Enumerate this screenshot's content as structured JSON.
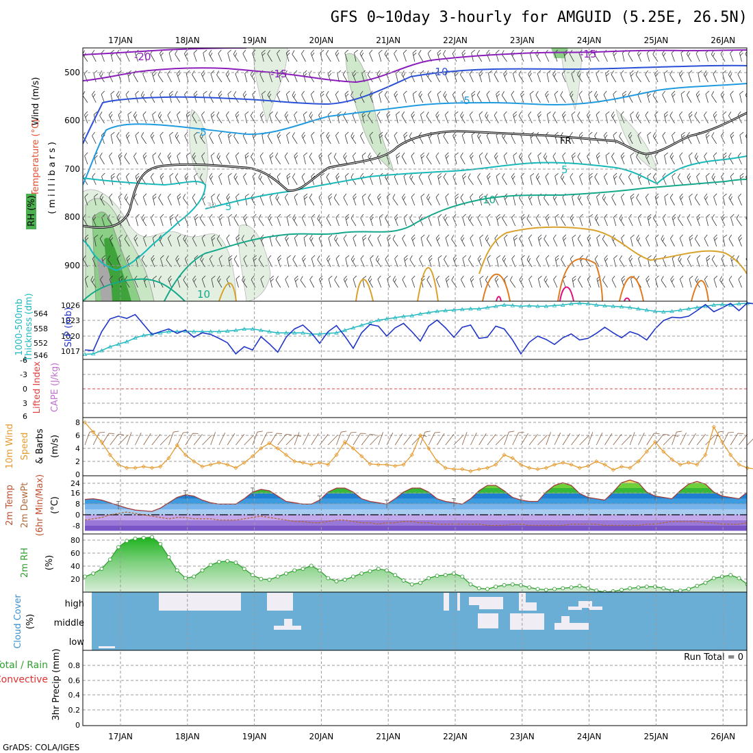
{
  "page": {
    "title": "GFS 0~10day 3-hourly for AMGUID (5.25E, 26.5N)",
    "footer": "GrADS: COLA/IGES",
    "dates": [
      "17JAN",
      "18JAN",
      "19JAN",
      "20JAN",
      "21JAN",
      "22JAN",
      "23JAN",
      "24JAN",
      "25JAN",
      "26JAN"
    ]
  },
  "panels": {
    "upper": {
      "axis_title": "(millibars)",
      "label_wind": "Wind (m/s)",
      "label_temp": "Temperature (°C)",
      "label_rh": "RH (%)",
      "pressure_ticks": [
        "500",
        "600",
        "700",
        "800",
        "900"
      ],
      "contour_labels": [
        "-20",
        "-15",
        "-15",
        "-10",
        "-5",
        "-5",
        "FR",
        "5",
        "5",
        "10",
        "10",
        "30"
      ]
    },
    "slp": {
      "label_slp": "SLP (mb)",
      "label_thick": "Thickness (dm)",
      "label_thick_top": "1000-500mb",
      "slp_ticks": [
        "1026",
        "1023",
        "1020",
        "1017"
      ],
      "thick_ticks": [
        "564",
        "558",
        "552",
        "546"
      ]
    },
    "li": {
      "label_li": "Lifted Index",
      "label_cape": "CAPE (J/kg)",
      "ticks": [
        "-6",
        "-3",
        "0",
        "3",
        "6"
      ]
    },
    "wind10": {
      "label_a": "10m Wind",
      "label_b": "Speed",
      "label_c": "& Barbs",
      "unit": "(m/s)",
      "ticks": [
        "8",
        "6",
        "4",
        "2",
        "0"
      ]
    },
    "temp": {
      "label_a": "2m Temp",
      "label_b": "2m DewPt",
      "label_c": "(6hr Min/Max)",
      "unit": "(°C)",
      "ticks": [
        "24",
        "16",
        "8",
        "0",
        "-8"
      ]
    },
    "rh2m": {
      "label": "2m RH",
      "unit": "(%)",
      "ticks": [
        "80",
        "60",
        "40",
        "20"
      ]
    },
    "cloud": {
      "label": "Cloud Cover",
      "unit": "(%)",
      "ticks": [
        "high",
        "middle",
        "low"
      ]
    },
    "precip": {
      "label_total": "Total / Rain",
      "label_conv": "Convective",
      "label_axis": "3hr Precip (mm)",
      "run_total": "Run Total = 0",
      "ticks": [
        "0.8",
        "0.6",
        "0.4",
        "0.2",
        "0"
      ]
    }
  },
  "colors": {
    "slp": "#1f35c8",
    "thickness": "#20b8c0",
    "wind": "#e69a2e",
    "temp_fill": "#3d9be0",
    "rh": "#2fa02f",
    "cloud_bg": "#6aaed6",
    "cloud_fill": "#f0eef4"
  },
  "chart_data": [
    {
      "type": "line",
      "title": "SLP (mb)",
      "x_unit": "3-hour step from 16JAN 12Z",
      "ylim": [
        1015.5,
        1026
      ],
      "series": [
        {
          "name": "SLP (mb)",
          "values": [
            1017.2,
            1017.1,
            1020.5,
            1022.8,
            1023.3,
            1022.9,
            1023.6,
            1021.8,
            1020.0,
            1020.5,
            1021.0,
            1020.2,
            1020.8,
            1019.5,
            1020.3,
            1020.0,
            1019.3,
            1018.5,
            1016.5,
            1017.8,
            1017.2,
            1019.6,
            1018.3,
            1016.8,
            1019.5,
            1021.0,
            1021.7,
            1020.3,
            1018.4,
            1020.5,
            1021.6,
            1019.7,
            1017.5,
            1020.3,
            1021.8,
            1021.5,
            1019.7,
            1021.2,
            1022.0,
            1020.5,
            1018.8,
            1021.5,
            1022.6,
            1021.2,
            1019.5,
            1021.3,
            1021.7,
            1019.3,
            1019.5,
            1021.5,
            1021.0,
            1019.0,
            1016.5,
            1018.6,
            1019.7,
            1019.1,
            1018.2,
            1019.4,
            1020.1,
            1019.0,
            1019.3,
            1020.2,
            1021.3,
            1020.3,
            1019.4,
            1020.5,
            1020.0,
            1019.0,
            1021.0,
            1022.5,
            1023.1,
            1023.0,
            1023.3,
            1024.3,
            1025.4,
            1024.1,
            1024.8,
            1025.6,
            1024.3,
            1025.7,
            1025.5
          ]
        }
      ]
    },
    {
      "type": "line",
      "title": "1000-500mb Thickness (dm)",
      "ylim": [
        544,
        567
      ],
      "series": [
        {
          "name": "Thickness (dm)",
          "values": [
            546,
            546.2,
            547.5,
            549,
            550,
            551,
            552.5,
            553.5,
            554,
            554.5,
            555,
            555,
            555.2,
            555,
            555,
            555,
            555,
            555.2,
            555.5,
            556,
            556,
            555.5,
            555,
            554.5,
            554.5,
            554.5,
            554.5,
            554,
            554,
            554.3,
            554.5,
            555.5,
            556.5,
            557.5,
            558.5,
            559.5,
            560,
            560.5,
            561,
            561.3,
            562,
            562.5,
            563,
            563.3,
            563.5,
            563.8,
            564,
            564,
            564.5,
            565,
            565.5,
            565.3,
            565,
            565.2,
            565,
            565,
            565.3,
            565.5,
            566,
            566.2,
            566,
            565.5,
            565.2,
            565,
            564.8,
            564.5,
            564,
            563.5,
            563,
            562.8,
            563,
            563.5,
            564,
            564.5,
            565,
            565.5,
            565.7,
            565.5,
            566,
            566.2,
            566
          ]
        }
      ]
    },
    {
      "type": "line",
      "title": "10m Wind Speed (m/s)",
      "ylim": [
        0,
        8
      ],
      "series": [
        {
          "name": "10m Wind Speed",
          "values": [
            8,
            6.5,
            5,
            3,
            1.5,
            1,
            1,
            1.2,
            1,
            1.2,
            2.5,
            4.5,
            3,
            2,
            1.2,
            1.5,
            1.8,
            1.5,
            1,
            1.8,
            2.8,
            4,
            4.8,
            4,
            3,
            2,
            1.8,
            1.5,
            1.8,
            1.5,
            3,
            5,
            4,
            2.8,
            1.6,
            1.5,
            1.5,
            1.3,
            1.5,
            3,
            6,
            4,
            2,
            1,
            0.8,
            0.8,
            0.5,
            0.8,
            1,
            1.5,
            3,
            2.5,
            1.5,
            1,
            0.8,
            1,
            1.5,
            1.8,
            1.5,
            1,
            1.3,
            2,
            1.5,
            0.7,
            1.2,
            1,
            2,
            3.5,
            5,
            3.5,
            2.3,
            1.5,
            1.8,
            1.5,
            3,
            7.3,
            5,
            3,
            1.5,
            1,
            0.8
          ]
        }
      ]
    },
    {
      "type": "area",
      "title": "2m Temp (°C)",
      "ylim": [
        -12,
        28
      ],
      "series": [
        {
          "name": "2m Temp",
          "values": [
            11.5,
            12,
            11,
            9,
            7,
            5,
            3.5,
            3,
            2.5,
            5,
            9,
            13,
            15,
            14,
            11,
            9,
            8,
            8,
            8,
            12,
            17,
            19,
            18,
            14,
            10,
            9,
            8,
            8,
            11,
            17,
            20,
            20,
            17,
            12,
            10,
            9,
            8,
            12,
            17,
            20,
            20,
            17,
            12,
            10,
            9,
            8,
            12,
            18,
            22,
            22,
            18,
            13,
            11,
            10,
            10,
            17,
            22,
            24,
            22,
            16,
            13,
            12,
            11,
            17,
            24,
            26,
            24,
            17,
            14,
            13,
            12,
            18,
            23,
            25,
            23,
            17,
            14,
            13,
            12,
            17,
            24,
            25,
            22,
            16,
            13,
            12,
            11,
            10,
            10
          ]
        },
        {
          "name": "2m DewPt",
          "values": [
            -4,
            -3,
            -2,
            0,
            1,
            2,
            1,
            0,
            -1,
            -2,
            -3,
            -2,
            -2,
            -3,
            -3,
            -3,
            -4,
            -4,
            -4,
            -3,
            -2,
            -1,
            -2,
            -3,
            -4,
            -5,
            -5,
            -6,
            -6,
            -5,
            -4,
            -4,
            -5,
            -6,
            -6,
            -7,
            -6,
            -6,
            -5,
            -5,
            -6,
            -6,
            -7,
            -7,
            -7,
            -7,
            -7,
            -7,
            -8,
            -8,
            -8,
            -7,
            -7,
            -8,
            -8,
            -8,
            -8,
            -8,
            -7,
            -7,
            -7,
            -7,
            -8,
            -8,
            -8,
            -8,
            -8,
            -7,
            -7,
            -6,
            -5,
            -5,
            -5,
            -5,
            -6,
            -6,
            -7,
            -7,
            -7,
            -6,
            -6,
            -7,
            -7,
            -7,
            -6,
            -6,
            -6,
            -6
          ]
        }
      ]
    },
    {
      "type": "area",
      "title": "2m RH (%)",
      "ylim": [
        10,
        85
      ],
      "series": [
        {
          "name": "2m RH",
          "values": [
            30,
            34,
            40,
            52,
            68,
            76,
            79,
            80,
            81,
            72,
            55,
            38,
            28,
            30,
            38,
            45,
            49,
            50,
            48,
            40,
            32,
            27,
            26,
            30,
            34,
            38,
            40,
            44,
            38,
            28,
            24,
            26,
            30,
            34,
            37,
            40,
            38,
            32,
            25,
            20,
            22,
            28,
            31,
            32,
            34,
            30,
            20,
            15,
            14,
            17,
            19,
            20,
            19,
            16,
            14,
            13,
            14,
            15,
            16,
            18,
            15,
            12,
            10,
            11,
            13,
            15,
            16,
            17,
            17,
            15,
            12,
            12,
            14,
            18,
            22,
            28,
            30,
            32,
            28,
            20,
            15,
            14,
            18,
            24,
            27,
            30,
            33
          ]
        }
      ]
    }
  ]
}
